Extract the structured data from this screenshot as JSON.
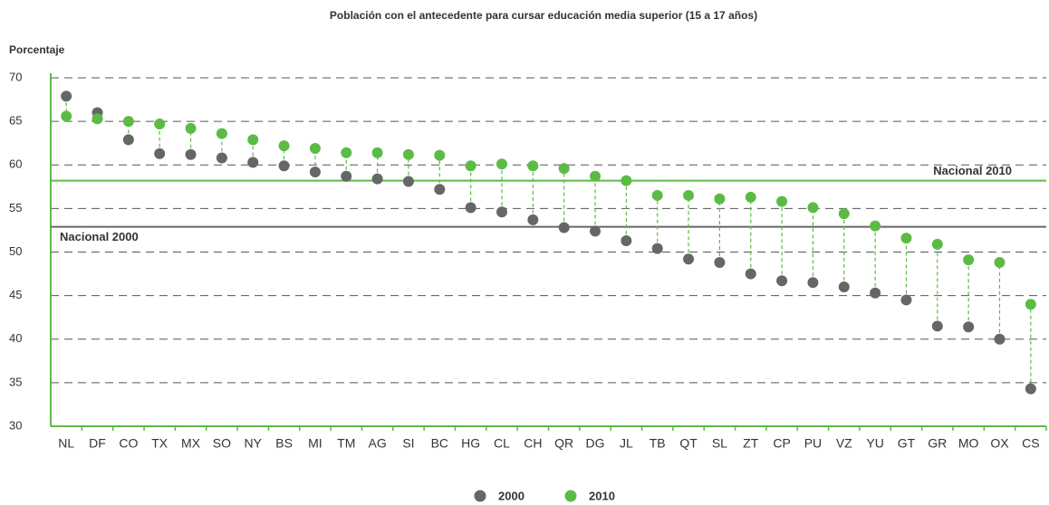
{
  "chart_data": {
    "type": "dot",
    "title": "Población con el antecedente para cursar educación media superior (15 a 17 años)",
    "y_label": "Porcentaje",
    "categories": [
      "NL",
      "DF",
      "CO",
      "TX",
      "MX",
      "SO",
      "NY",
      "BS",
      "MI",
      "TM",
      "AG",
      "SI",
      "BC",
      "HG",
      "CL",
      "CH",
      "QR",
      "DG",
      "JL",
      "TB",
      "QT",
      "SL",
      "ZT",
      "CP",
      "PU",
      "VZ",
      "YU",
      "GT",
      "GR",
      "MO",
      "OX",
      "CS"
    ],
    "series": [
      {
        "name": "2000",
        "color": "#666666",
        "values": [
          67.9,
          66.0,
          62.9,
          61.3,
          61.2,
          60.8,
          60.3,
          59.9,
          59.2,
          58.7,
          58.4,
          58.1,
          57.2,
          55.1,
          54.6,
          53.7,
          52.8,
          52.4,
          51.3,
          50.4,
          49.2,
          48.8,
          47.5,
          46.7,
          46.5,
          46.0,
          45.3,
          44.5,
          41.5,
          41.4,
          40.0,
          34.3
        ]
      },
      {
        "name": "2010",
        "color": "#5cbb46",
        "values": [
          65.6,
          65.3,
          65.0,
          64.7,
          64.2,
          63.6,
          62.9,
          62.2,
          61.9,
          61.4,
          61.4,
          61.2,
          61.1,
          59.9,
          60.1,
          59.9,
          59.6,
          58.7,
          58.2,
          56.5,
          56.5,
          56.1,
          56.3,
          55.8,
          55.1,
          54.4,
          53.0,
          51.6,
          50.9,
          49.1,
          48.8,
          44.0
        ]
      }
    ],
    "reference_lines": [
      {
        "label": "Nacional 2000",
        "value": 52.9,
        "color": "#666666"
      },
      {
        "label": "Nacional 2010",
        "value": 58.2,
        "color": "#5cbb46"
      }
    ],
    "connector_color": "#5cbb46",
    "ylim": [
      30,
      70
    ],
    "yticks": [
      30,
      35,
      40,
      45,
      50,
      55,
      60,
      65,
      70
    ],
    "grid": true
  }
}
